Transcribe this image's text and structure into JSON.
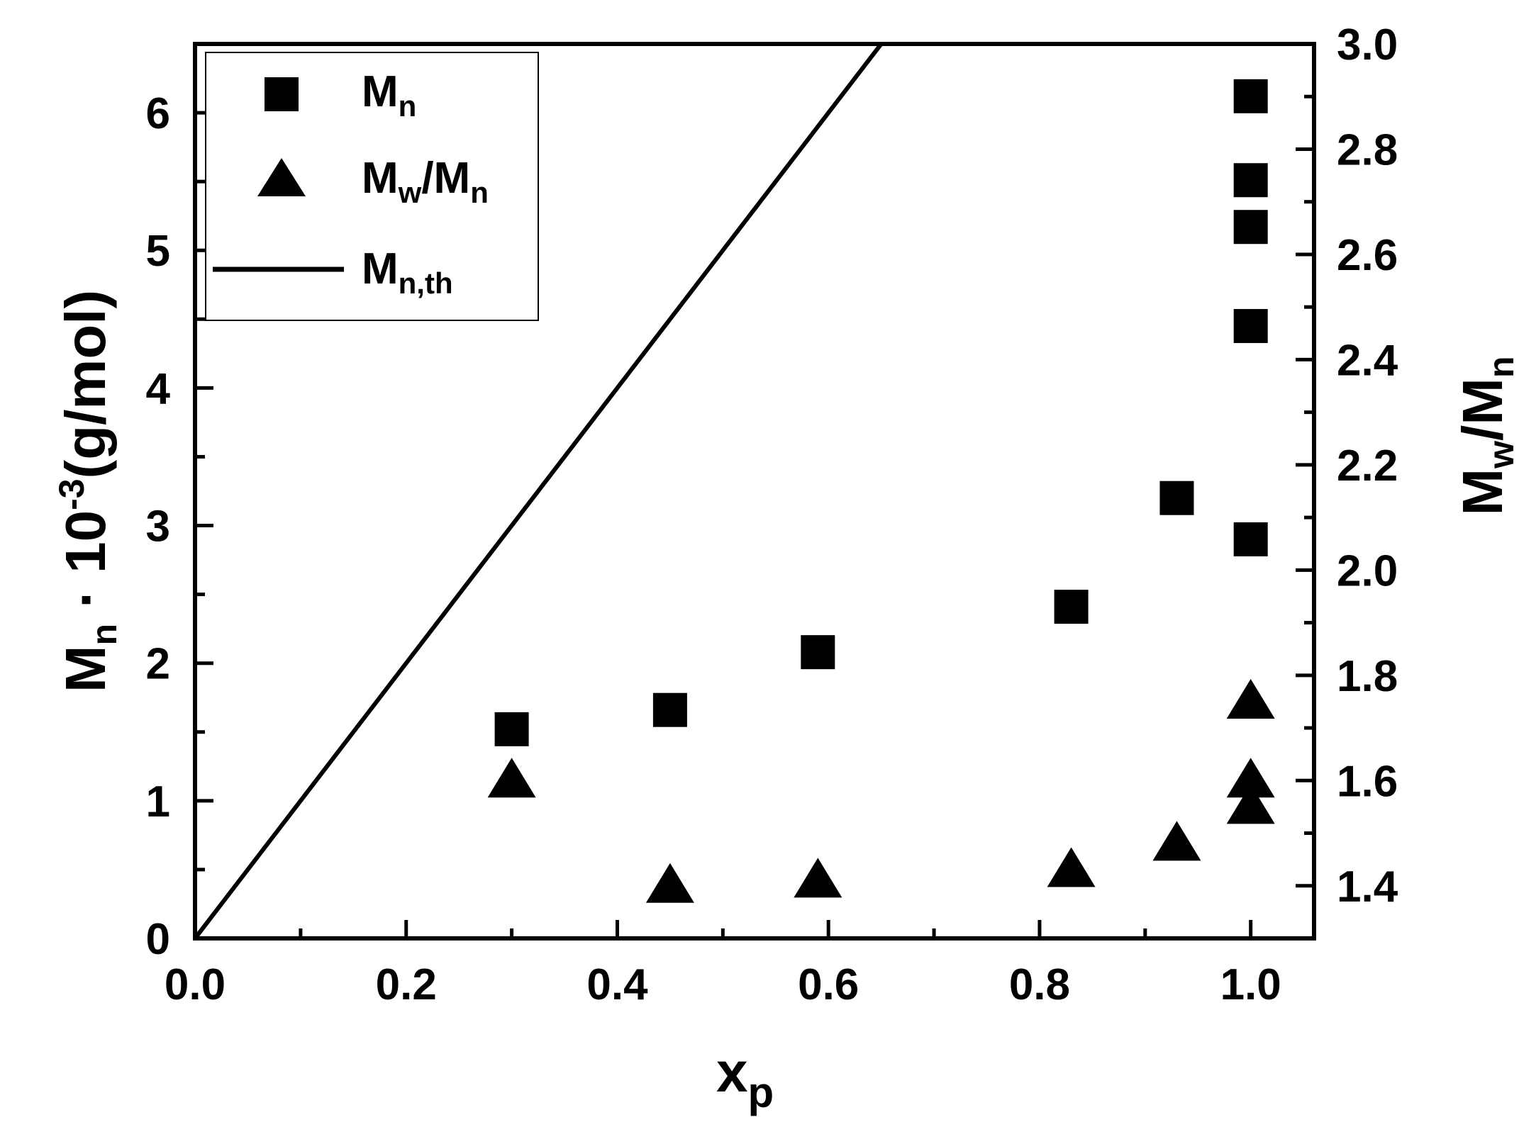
{
  "chart_data": {
    "type": "scatter",
    "xlabel": {
      "main": "x",
      "sub": "p"
    },
    "ylabel": {
      "parts": [
        {
          "text": "M",
          "kind": "normal"
        },
        {
          "text": "n",
          "kind": "sub"
        },
        {
          "text": " · 10",
          "kind": "normal"
        },
        {
          "text": "-3",
          "kind": "sup"
        },
        {
          "text": "(g/mol)",
          "kind": "normal"
        }
      ]
    },
    "y2label": {
      "main": "M",
      "sub1": "w",
      "mid": "/M",
      "sub2": "n"
    },
    "xlim": [
      0.0,
      1.06
    ],
    "ylim": [
      0,
      6.5
    ],
    "y2lim": [
      1.3,
      3.0
    ],
    "xticks": [
      "0.0",
      "0.2",
      "0.4",
      "0.6",
      "0.8",
      "1.0"
    ],
    "yticks": [
      "0",
      "1",
      "2",
      "3",
      "4",
      "5",
      "6"
    ],
    "y2ticks": [
      "1.4",
      "1.6",
      "1.8",
      "2.0",
      "2.2",
      "2.4",
      "2.6",
      "2.8",
      "3.0"
    ],
    "legend_position": "top-left",
    "series": [
      {
        "name": "M",
        "name_sub": "n",
        "marker": "square",
        "axis": "left",
        "x": [
          0.3,
          0.45,
          0.59,
          0.83,
          0.93,
          1.0,
          1.0,
          1.0,
          1.0,
          1.0
        ],
        "y": [
          1.52,
          1.66,
          2.08,
          2.41,
          3.2,
          2.9,
          4.45,
          5.17,
          5.51,
          6.12
        ]
      },
      {
        "name": "M",
        "name_sub": "w",
        "name_mid": "/M",
        "name_sub2": "n",
        "marker": "triangle",
        "axis": "right",
        "x": [
          0.3,
          0.45,
          0.59,
          0.83,
          0.93,
          1.0,
          1.0,
          1.0
        ],
        "y": [
          1.6,
          1.4,
          1.41,
          1.43,
          1.48,
          1.55,
          1.6,
          1.75
        ]
      },
      {
        "name": "M",
        "name_sub": "n,th",
        "marker": "line",
        "axis": "left",
        "x": [
          0.0,
          0.65
        ],
        "y": [
          0.0,
          6.5
        ]
      }
    ]
  }
}
